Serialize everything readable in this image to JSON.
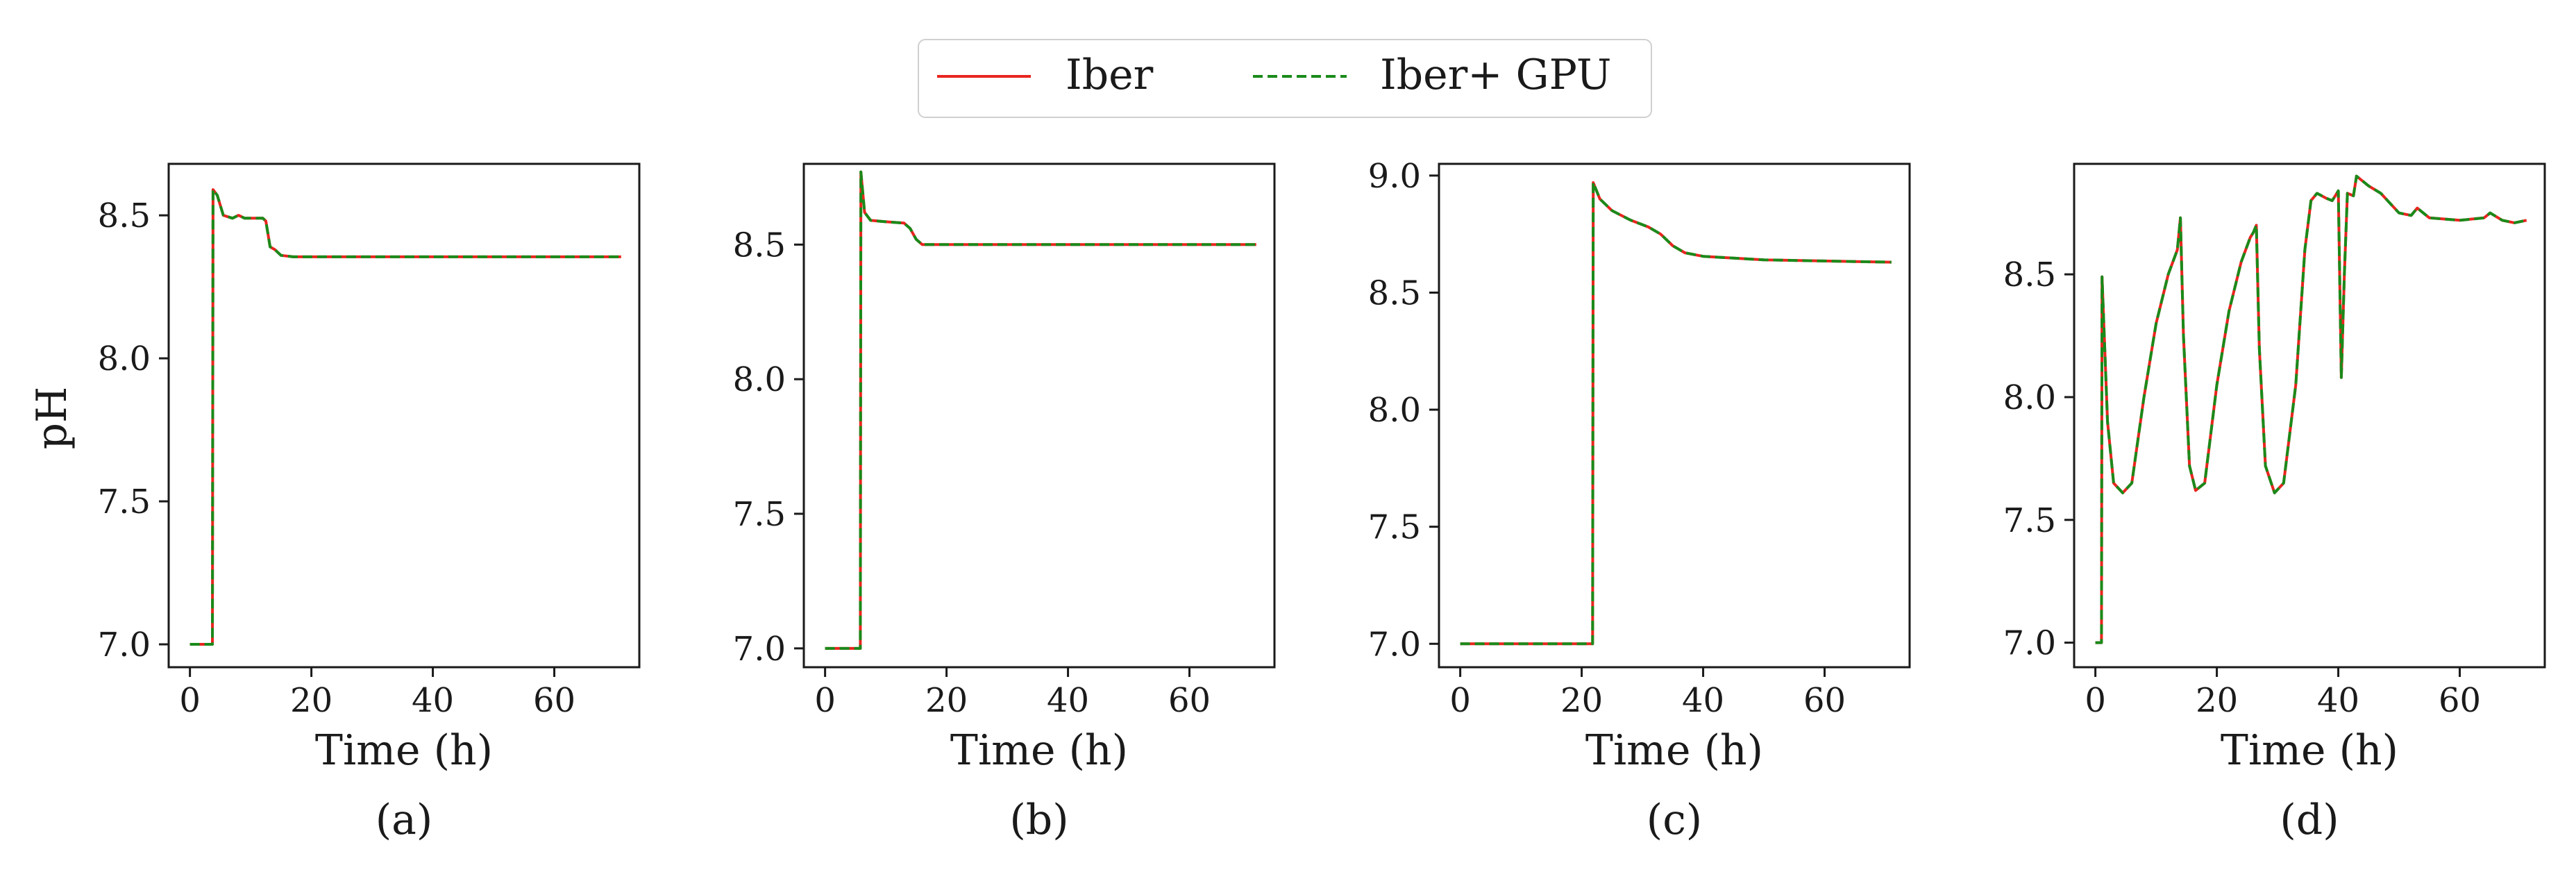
{
  "legend": {
    "items": [
      {
        "label": "Iber",
        "color": "#e8251f",
        "style": "solid"
      },
      {
        "label": "Iber+ GPU",
        "color": "#1a8a1a",
        "style": "dashed"
      }
    ]
  },
  "chart_data": [
    {
      "type": "line",
      "panel_label": "(a)",
      "xlabel": "Time (h)",
      "ylabel": "pH",
      "xlim": [
        -3.5,
        74
      ],
      "ylim": [
        6.92,
        8.68
      ],
      "xticks": [
        0,
        20,
        40,
        60
      ],
      "yticks": [
        7.0,
        7.5,
        8.0,
        8.5
      ],
      "ytick_labels": [
        "7.0",
        "7.5",
        "8.0",
        "8.5"
      ],
      "series": [
        {
          "name": "Iber",
          "points": [
            [
              0,
              7.0
            ],
            [
              3.7,
              7.0
            ],
            [
              3.8,
              8.59
            ],
            [
              4.5,
              8.57
            ],
            [
              5.5,
              8.5
            ],
            [
              7,
              8.49
            ],
            [
              8,
              8.5
            ],
            [
              9,
              8.49
            ],
            [
              10,
              8.49
            ],
            [
              12,
              8.49
            ],
            [
              12.5,
              8.48
            ],
            [
              13.2,
              8.39
            ],
            [
              14,
              8.38
            ],
            [
              15,
              8.36
            ],
            [
              17,
              8.355
            ],
            [
              20,
              8.355
            ],
            [
              40,
              8.355
            ],
            [
              60,
              8.355
            ],
            [
              71,
              8.355
            ]
          ]
        },
        {
          "name": "Iber+ GPU",
          "points": [
            [
              0,
              7.0
            ],
            [
              3.7,
              7.0
            ],
            [
              3.8,
              8.59
            ],
            [
              4.5,
              8.57
            ],
            [
              5.5,
              8.5
            ],
            [
              7,
              8.49
            ],
            [
              8,
              8.5
            ],
            [
              9,
              8.49
            ],
            [
              10,
              8.49
            ],
            [
              12,
              8.49
            ],
            [
              12.5,
              8.48
            ],
            [
              13.2,
              8.39
            ],
            [
              14,
              8.38
            ],
            [
              15,
              8.36
            ],
            [
              17,
              8.355
            ],
            [
              20,
              8.355
            ],
            [
              40,
              8.355
            ],
            [
              60,
              8.355
            ],
            [
              71,
              8.355
            ]
          ]
        }
      ]
    },
    {
      "type": "line",
      "panel_label": "(b)",
      "xlabel": "Time (h)",
      "ylabel": "",
      "xlim": [
        -3.5,
        74
      ],
      "ylim": [
        6.93,
        8.8
      ],
      "xticks": [
        0,
        20,
        40,
        60
      ],
      "yticks": [
        7.0,
        7.5,
        8.0,
        8.5
      ],
      "ytick_labels": [
        "7.0",
        "7.5",
        "8.0",
        "8.5"
      ],
      "series": [
        {
          "name": "Iber",
          "points": [
            [
              0,
              7.0
            ],
            [
              5.8,
              7.0
            ],
            [
              5.9,
              8.77
            ],
            [
              6.5,
              8.62
            ],
            [
              7.5,
              8.59
            ],
            [
              10,
              8.585
            ],
            [
              13,
              8.58
            ],
            [
              14,
              8.56
            ],
            [
              15,
              8.52
            ],
            [
              16,
              8.5
            ],
            [
              18,
              8.5
            ],
            [
              30,
              8.5
            ],
            [
              50,
              8.5
            ],
            [
              71,
              8.5
            ]
          ]
        },
        {
          "name": "Iber+ GPU",
          "points": [
            [
              0,
              7.0
            ],
            [
              5.8,
              7.0
            ],
            [
              5.9,
              8.77
            ],
            [
              6.5,
              8.62
            ],
            [
              7.5,
              8.59
            ],
            [
              10,
              8.585
            ],
            [
              13,
              8.58
            ],
            [
              14,
              8.56
            ],
            [
              15,
              8.52
            ],
            [
              16,
              8.5
            ],
            [
              18,
              8.5
            ],
            [
              30,
              8.5
            ],
            [
              50,
              8.5
            ],
            [
              71,
              8.5
            ]
          ]
        }
      ]
    },
    {
      "type": "line",
      "panel_label": "(c)",
      "xlabel": "Time (h)",
      "ylabel": "",
      "xlim": [
        -3.5,
        74
      ],
      "ylim": [
        6.9,
        9.05
      ],
      "xticks": [
        0,
        20,
        40,
        60
      ],
      "yticks": [
        7.0,
        7.5,
        8.0,
        8.5,
        9.0
      ],
      "ytick_labels": [
        "7.0",
        "7.5",
        "8.0",
        "8.5",
        "9.0"
      ],
      "series": [
        {
          "name": "Iber",
          "points": [
            [
              0,
              7.0
            ],
            [
              21.8,
              7.0
            ],
            [
              21.9,
              8.97
            ],
            [
              23,
              8.9
            ],
            [
              25,
              8.85
            ],
            [
              28,
              8.81
            ],
            [
              31,
              8.78
            ],
            [
              33,
              8.75
            ],
            [
              35,
              8.7
            ],
            [
              37,
              8.67
            ],
            [
              40,
              8.655
            ],
            [
              50,
              8.64
            ],
            [
              60,
              8.635
            ],
            [
              71,
              8.63
            ]
          ]
        },
        {
          "name": "Iber+ GPU",
          "points": [
            [
              0,
              7.0
            ],
            [
              21.8,
              7.0
            ],
            [
              21.9,
              8.97
            ],
            [
              23,
              8.9
            ],
            [
              25,
              8.85
            ],
            [
              28,
              8.81
            ],
            [
              31,
              8.78
            ],
            [
              33,
              8.75
            ],
            [
              35,
              8.7
            ],
            [
              37,
              8.67
            ],
            [
              40,
              8.655
            ],
            [
              50,
              8.64
            ],
            [
              60,
              8.635
            ],
            [
              71,
              8.63
            ]
          ]
        }
      ]
    },
    {
      "type": "line",
      "panel_label": "(d)",
      "xlabel": "Time (h)",
      "ylabel": "",
      "xlim": [
        -3.5,
        74
      ],
      "ylim": [
        6.9,
        8.95
      ],
      "xticks": [
        0,
        20,
        40,
        60
      ],
      "yticks": [
        7.0,
        7.5,
        8.0,
        8.5
      ],
      "ytick_labels": [
        "7.0",
        "7.5",
        "8.0",
        "8.5"
      ],
      "series": [
        {
          "name": "Iber",
          "points": [
            [
              0,
              7.0
            ],
            [
              1,
              7.0
            ],
            [
              1.1,
              8.49
            ],
            [
              2,
              7.9
            ],
            [
              3,
              7.65
            ],
            [
              4.5,
              7.61
            ],
            [
              6,
              7.65
            ],
            [
              8,
              8.0
            ],
            [
              10,
              8.3
            ],
            [
              12,
              8.5
            ],
            [
              13.5,
              8.6
            ],
            [
              14,
              8.73
            ],
            [
              14.5,
              8.25
            ],
            [
              15.5,
              7.72
            ],
            [
              16.5,
              7.62
            ],
            [
              18,
              7.65
            ],
            [
              20,
              8.05
            ],
            [
              22,
              8.35
            ],
            [
              24,
              8.55
            ],
            [
              25.5,
              8.65
            ],
            [
              26,
              8.67
            ],
            [
              26.5,
              8.7
            ],
            [
              27,
              8.2
            ],
            [
              28,
              7.72
            ],
            [
              29.5,
              7.61
            ],
            [
              31,
              7.65
            ],
            [
              33,
              8.05
            ],
            [
              34.5,
              8.6
            ],
            [
              35.5,
              8.8
            ],
            [
              36.5,
              8.83
            ],
            [
              38,
              8.81
            ],
            [
              39,
              8.8
            ],
            [
              40,
              8.84
            ],
            [
              40.5,
              8.08
            ],
            [
              41,
              8.5
            ],
            [
              41.5,
              8.83
            ],
            [
              42.5,
              8.82
            ],
            [
              43,
              8.9
            ],
            [
              45,
              8.86
            ],
            [
              47,
              8.83
            ],
            [
              50,
              8.75
            ],
            [
              52,
              8.74
            ],
            [
              53,
              8.77
            ],
            [
              55,
              8.73
            ],
            [
              60,
              8.72
            ],
            [
              64,
              8.73
            ],
            [
              65,
              8.75
            ],
            [
              67,
              8.72
            ],
            [
              69,
              8.71
            ],
            [
              71,
              8.72
            ]
          ]
        },
        {
          "name": "Iber+ GPU",
          "points": [
            [
              0,
              7.0
            ],
            [
              1,
              7.0
            ],
            [
              1.1,
              8.49
            ],
            [
              2,
              7.9
            ],
            [
              3,
              7.65
            ],
            [
              4.5,
              7.61
            ],
            [
              6,
              7.65
            ],
            [
              8,
              8.0
            ],
            [
              10,
              8.3
            ],
            [
              12,
              8.5
            ],
            [
              13.5,
              8.6
            ],
            [
              14,
              8.73
            ],
            [
              14.5,
              8.25
            ],
            [
              15.5,
              7.72
            ],
            [
              16.5,
              7.62
            ],
            [
              18,
              7.65
            ],
            [
              20,
              8.05
            ],
            [
              22,
              8.35
            ],
            [
              24,
              8.55
            ],
            [
              25.5,
              8.65
            ],
            [
              26,
              8.67
            ],
            [
              26.5,
              8.7
            ],
            [
              27,
              8.2
            ],
            [
              28,
              7.72
            ],
            [
              29.5,
              7.61
            ],
            [
              31,
              7.65
            ],
            [
              33,
              8.05
            ],
            [
              34.5,
              8.6
            ],
            [
              35.5,
              8.8
            ],
            [
              36.5,
              8.83
            ],
            [
              38,
              8.81
            ],
            [
              39,
              8.8
            ],
            [
              40,
              8.84
            ],
            [
              40.5,
              8.08
            ],
            [
              41,
              8.5
            ],
            [
              41.5,
              8.83
            ],
            [
              42.5,
              8.82
            ],
            [
              43,
              8.9
            ],
            [
              45,
              8.86
            ],
            [
              47,
              8.83
            ],
            [
              50,
              8.75
            ],
            [
              52,
              8.74
            ],
            [
              53,
              8.77
            ],
            [
              55,
              8.73
            ],
            [
              60,
              8.72
            ],
            [
              64,
              8.73
            ],
            [
              65,
              8.75
            ],
            [
              67,
              8.72
            ],
            [
              69,
              8.71
            ],
            [
              71,
              8.72
            ]
          ]
        }
      ]
    }
  ]
}
